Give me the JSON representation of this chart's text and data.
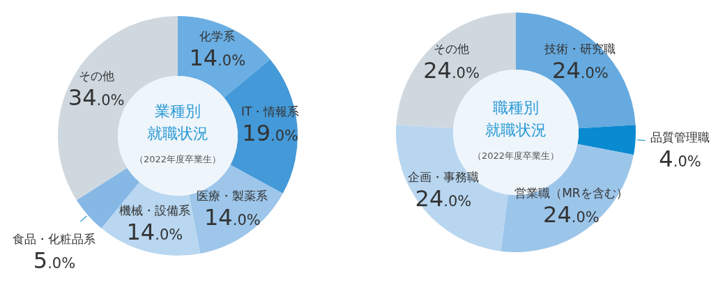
{
  "chart_data": [
    {
      "type": "donut",
      "title": "業種別",
      "subtitle": "就職状況",
      "annotations": [
        "（2022年度卒業生）"
      ],
      "categories": [
        "化学系",
        "IT・情報系",
        "医療・製薬系",
        "機械・設備系",
        "食品・化粧品系",
        "その他"
      ],
      "values": [
        14,
        19,
        14,
        14,
        5,
        34
      ],
      "value_labels": [
        "14.0%",
        "19.0%",
        "14.0%",
        "14.0%",
        "5.0%",
        "34.0%"
      ],
      "colors": [
        "#6aaee3",
        "#4499d8",
        "#9dc6ea",
        "#b9d7f0",
        "#86b8e6",
        "#cfd8df"
      ]
    },
    {
      "type": "donut",
      "title": "職種別",
      "subtitle": "就職状況",
      "annotations": [
        "（2022年度卒業生）"
      ],
      "categories": [
        "技術・研究職",
        "品質管理職",
        "営業職（MRを含む）",
        "企画・事務職",
        "その他"
      ],
      "values": [
        24,
        4,
        24,
        24,
        24
      ],
      "value_labels": [
        "24.0%",
        "4.0%",
        "24.0%",
        "24.0%",
        "24.0%"
      ],
      "colors": [
        "#66aadf",
        "#0a8ad0",
        "#9cc5ea",
        "#b8d6f0",
        "#cfd8df"
      ]
    }
  ]
}
